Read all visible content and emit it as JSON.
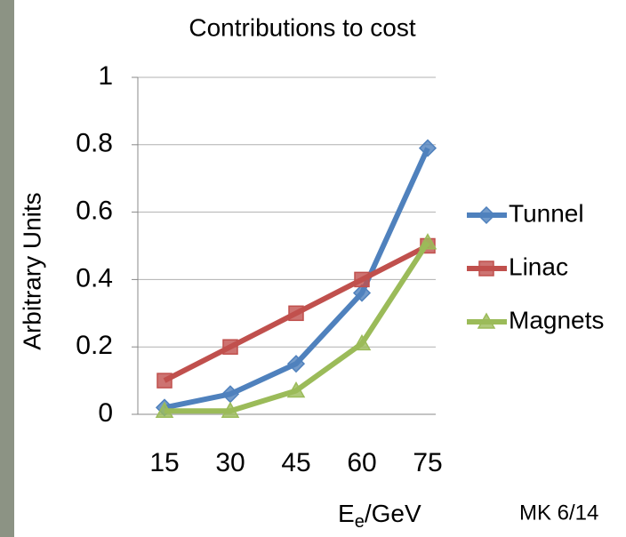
{
  "chart_data": {
    "type": "line",
    "title": "Contributions to cost",
    "x_label": {
      "main": "E",
      "sub": "e",
      "rest": "/GeV"
    },
    "y_label": "Arbitrary Units",
    "annotation": "MK 6/14",
    "categories": [
      "15",
      "30",
      "45",
      "60",
      "75"
    ],
    "series": [
      {
        "name": "Tunnel",
        "color": "#4f81bd",
        "marker": "diamond",
        "values": [
          0.02,
          0.06,
          0.15,
          0.36,
          0.79
        ]
      },
      {
        "name": "Linac",
        "color": "#c0504d",
        "marker": "square",
        "values": [
          0.1,
          0.2,
          0.3,
          0.4,
          0.5
        ]
      },
      {
        "name": "Magnets",
        "color": "#9bbb59",
        "marker": "triangle",
        "values": [
          0.01,
          0.01,
          0.07,
          0.21,
          0.51
        ]
      }
    ],
    "ylim": [
      0,
      1
    ],
    "yticks": [
      0,
      0.2,
      0.4,
      0.6,
      0.8,
      1
    ],
    "grid": true,
    "legend": "right"
  }
}
